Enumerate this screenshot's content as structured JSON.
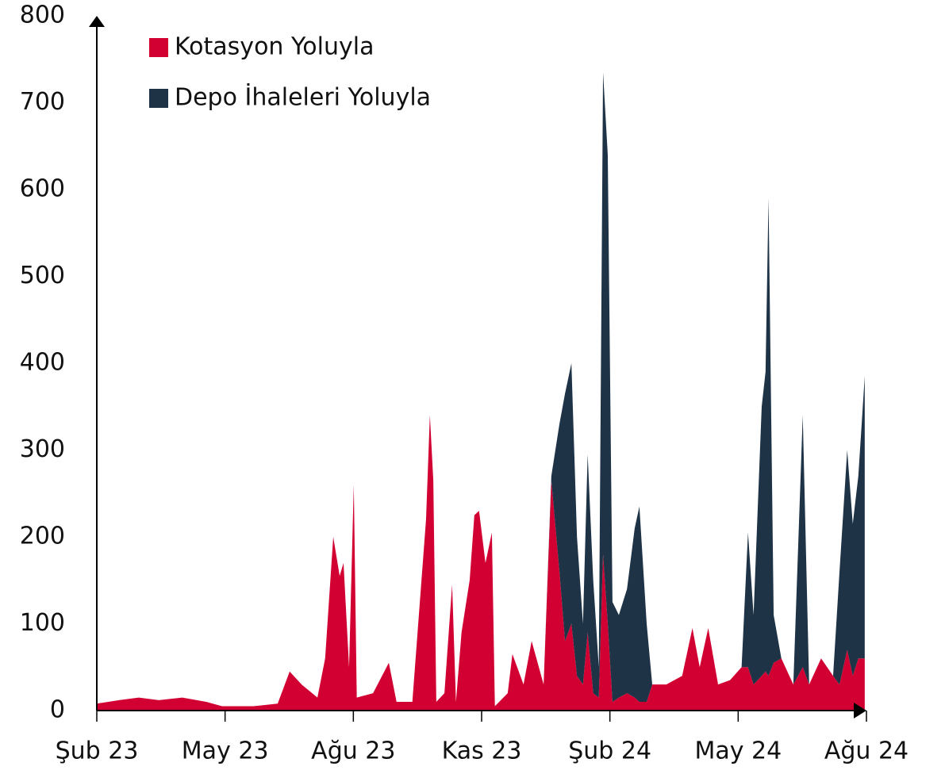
{
  "chart_data": {
    "type": "stacked_area",
    "x": [
      0,
      0.52,
      0.98,
      1.45,
      2.0,
      2.56,
      2.93,
      3.67,
      4.23,
      4.51,
      4.79,
      5.16,
      5.34,
      5.53,
      5.68,
      5.77,
      5.9,
      6.01,
      6.08,
      6.46,
      6.83,
      7.01,
      7.38,
      7.7,
      7.79,
      7.87,
      7.94,
      8.13,
      8.31,
      8.4,
      8.53,
      8.72,
      8.83,
      8.94,
      9.09,
      9.24,
      9.31,
      9.61,
      9.72,
      9.98,
      10.17,
      10.45,
      10.63,
      10.82,
      10.95,
      11.1,
      11.23,
      11.37,
      11.48,
      11.61,
      11.74,
      11.84,
      11.95,
      12.06,
      12.21,
      12.4,
      12.58,
      12.69,
      12.86,
      12.99,
      13.32,
      13.69,
      13.93,
      14.1,
      14.3,
      14.53,
      14.81,
      15.08,
      15.23,
      15.36,
      15.55,
      15.64,
      15.71,
      15.83,
      16.01,
      16.29,
      16.51,
      16.66,
      16.94,
      17.22,
      17.37,
      17.55,
      17.68,
      17.81,
      17.96
    ],
    "series": [
      {
        "name": "Kotasyon Yoluyla",
        "color": "#d20032",
        "values": [
          8,
          12,
          15,
          12,
          15,
          10,
          5,
          5,
          8,
          45,
          30,
          15,
          60,
          200,
          155,
          170,
          50,
          260,
          15,
          20,
          55,
          10,
          10,
          220,
          340,
          265,
          10,
          20,
          145,
          10,
          90,
          150,
          225,
          230,
          170,
          205,
          5,
          20,
          65,
          30,
          80,
          30,
          265,
          160,
          80,
          100,
          40,
          30,
          90,
          20,
          15,
          180,
          100,
          10,
          15,
          20,
          15,
          10,
          10,
          30,
          30,
          40,
          95,
          50,
          95,
          30,
          35,
          50,
          50,
          30,
          40,
          45,
          40,
          55,
          60,
          30,
          50,
          30,
          60,
          40,
          30,
          70,
          40,
          60,
          60
        ]
      },
      {
        "name": "Depo İhaleleri Yoluyla",
        "color": "#1f3347",
        "values": [
          0,
          0,
          0,
          0,
          0,
          0,
          0,
          0,
          0,
          0,
          0,
          0,
          0,
          0,
          0,
          0,
          0,
          0,
          0,
          0,
          0,
          0,
          0,
          0,
          0,
          0,
          0,
          0,
          0,
          0,
          0,
          0,
          0,
          0,
          0,
          0,
          0,
          0,
          0,
          0,
          0,
          0,
          5,
          170,
          285,
          300,
          160,
          70,
          205,
          130,
          35,
          555,
          540,
          115,
          95,
          120,
          195,
          225,
          90,
          0,
          0,
          0,
          0,
          0,
          0,
          0,
          0,
          0,
          155,
          80,
          310,
          345,
          550,
          55,
          0,
          0,
          290,
          0,
          0,
          0,
          130,
          230,
          175,
          210,
          325
        ]
      }
    ],
    "xlim": [
      0,
      18
    ],
    "xticks": [
      {
        "value": 0,
        "label": "Şub 23"
      },
      {
        "value": 3,
        "label": "May 23"
      },
      {
        "value": 6,
        "label": "Ağu 23"
      },
      {
        "value": 9,
        "label": "Kas 23"
      },
      {
        "value": 12,
        "label": "Şub 24"
      },
      {
        "value": 15,
        "label": "May 24"
      },
      {
        "value": 18,
        "label": "Ağu 24"
      }
    ],
    "ylim": [
      0,
      800
    ],
    "yticks": [
      0,
      100,
      200,
      300,
      400,
      500,
      600,
      700,
      800
    ],
    "legend": "top-left"
  }
}
